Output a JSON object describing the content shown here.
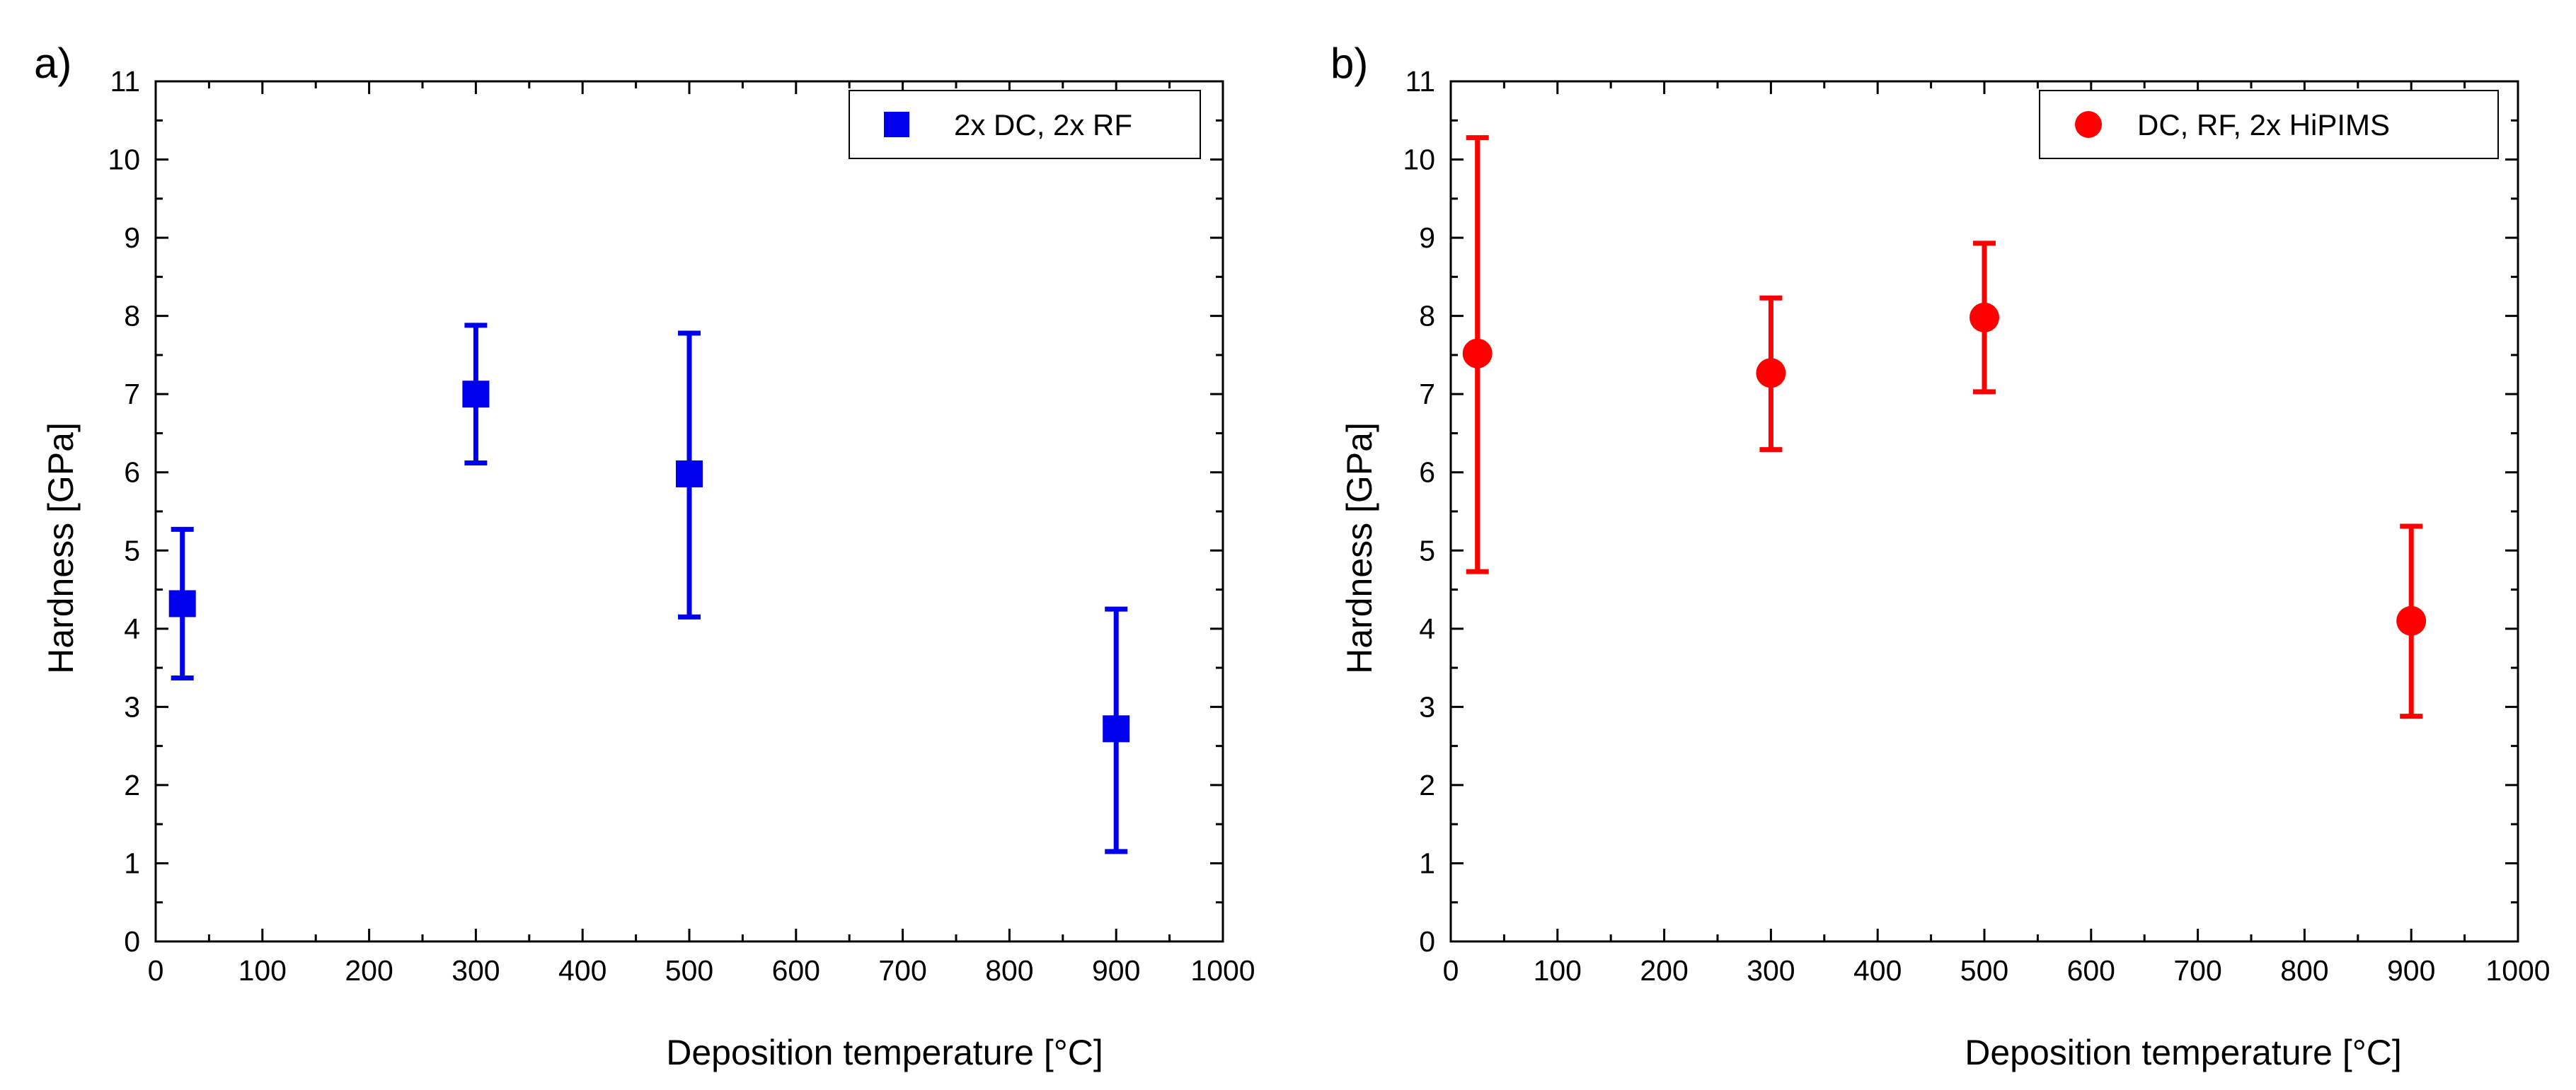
{
  "chart_data": [
    {
      "type": "scatter",
      "panel_label": "a)",
      "xlabel": "Deposition temperature [°C]",
      "ylabel": "Hardness [GPa]",
      "xlim": [
        0,
        1000
      ],
      "ylim": [
        0,
        11
      ],
      "xticks": [
        0,
        100,
        200,
        300,
        400,
        500,
        600,
        700,
        800,
        900,
        1000
      ],
      "yticks": [
        0,
        1,
        2,
        3,
        4,
        5,
        6,
        7,
        8,
        9,
        10,
        11
      ],
      "grid": false,
      "legend_position": "top-right",
      "series": [
        {
          "name": "2x DC, 2x RF",
          "color": "#0000ee",
          "marker": "square",
          "points": [
            {
              "x": 25,
              "y": 4.32,
              "err_low": 3.37,
              "err_high": 5.27
            },
            {
              "x": 300,
              "y": 7.0,
              "err_low": 6.12,
              "err_high": 7.88
            },
            {
              "x": 500,
              "y": 5.98,
              "err_low": 4.15,
              "err_high": 7.78
            },
            {
              "x": 900,
              "y": 2.72,
              "err_low": 1.15,
              "err_high": 4.25
            }
          ]
        }
      ]
    },
    {
      "type": "scatter",
      "panel_label": "b)",
      "xlabel": "Deposition temperature [°C]",
      "ylabel": "Hardness [GPa]",
      "xlim": [
        0,
        1000
      ],
      "ylim": [
        0,
        11
      ],
      "xticks": [
        0,
        100,
        200,
        300,
        400,
        500,
        600,
        700,
        800,
        900,
        1000
      ],
      "yticks": [
        0,
        1,
        2,
        3,
        4,
        5,
        6,
        7,
        8,
        9,
        10,
        11
      ],
      "grid": false,
      "legend_position": "top-right",
      "series": [
        {
          "name": "DC, RF, 2x HiPIMS",
          "color": "#ff0000",
          "marker": "circle",
          "points": [
            {
              "x": 25,
              "y": 7.52,
              "err_low": 4.73,
              "err_high": 10.28
            },
            {
              "x": 300,
              "y": 7.27,
              "err_low": 6.29,
              "err_high": 8.23
            },
            {
              "x": 500,
              "y": 7.98,
              "err_low": 7.03,
              "err_high": 8.93
            },
            {
              "x": 900,
              "y": 4.1,
              "err_low": 2.88,
              "err_high": 5.31
            }
          ]
        }
      ]
    }
  ]
}
